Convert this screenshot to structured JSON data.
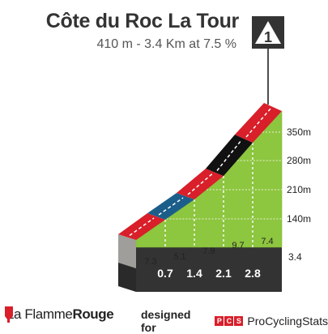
{
  "chart_data": {
    "type": "area",
    "title": "Côte du Roc La Tour",
    "subtitle": "410 m - 3.4 Km at 7.5 %",
    "category_badge": "1",
    "y_ticks": [
      "350m",
      "280m",
      "210m",
      "140m"
    ],
    "start_km_label": "3.4",
    "km_markers": [
      "0.7",
      "1.4",
      "2.1",
      "2.8"
    ],
    "segments": [
      {
        "gradient": "7.3",
        "color": "#d81f2a"
      },
      {
        "gradient": "5.1",
        "color": "#1c5e8a"
      },
      {
        "gradient": "7.9",
        "color": "#d81f2a"
      },
      {
        "gradient": "9.7",
        "color": "#111111"
      },
      {
        "gradient": "7.4",
        "color": "#d81f2a"
      }
    ],
    "colors": {
      "side_fill": "#8dc63f",
      "base": "#333333",
      "left_face": "#a09e9b"
    }
  },
  "footer": {
    "brand_light": "La Flamme",
    "brand_bold": "Rouge",
    "designed_for": "designed for",
    "pcs_letters": [
      "P",
      "C",
      "S"
    ],
    "pcs_name": "ProCyclingStats"
  }
}
